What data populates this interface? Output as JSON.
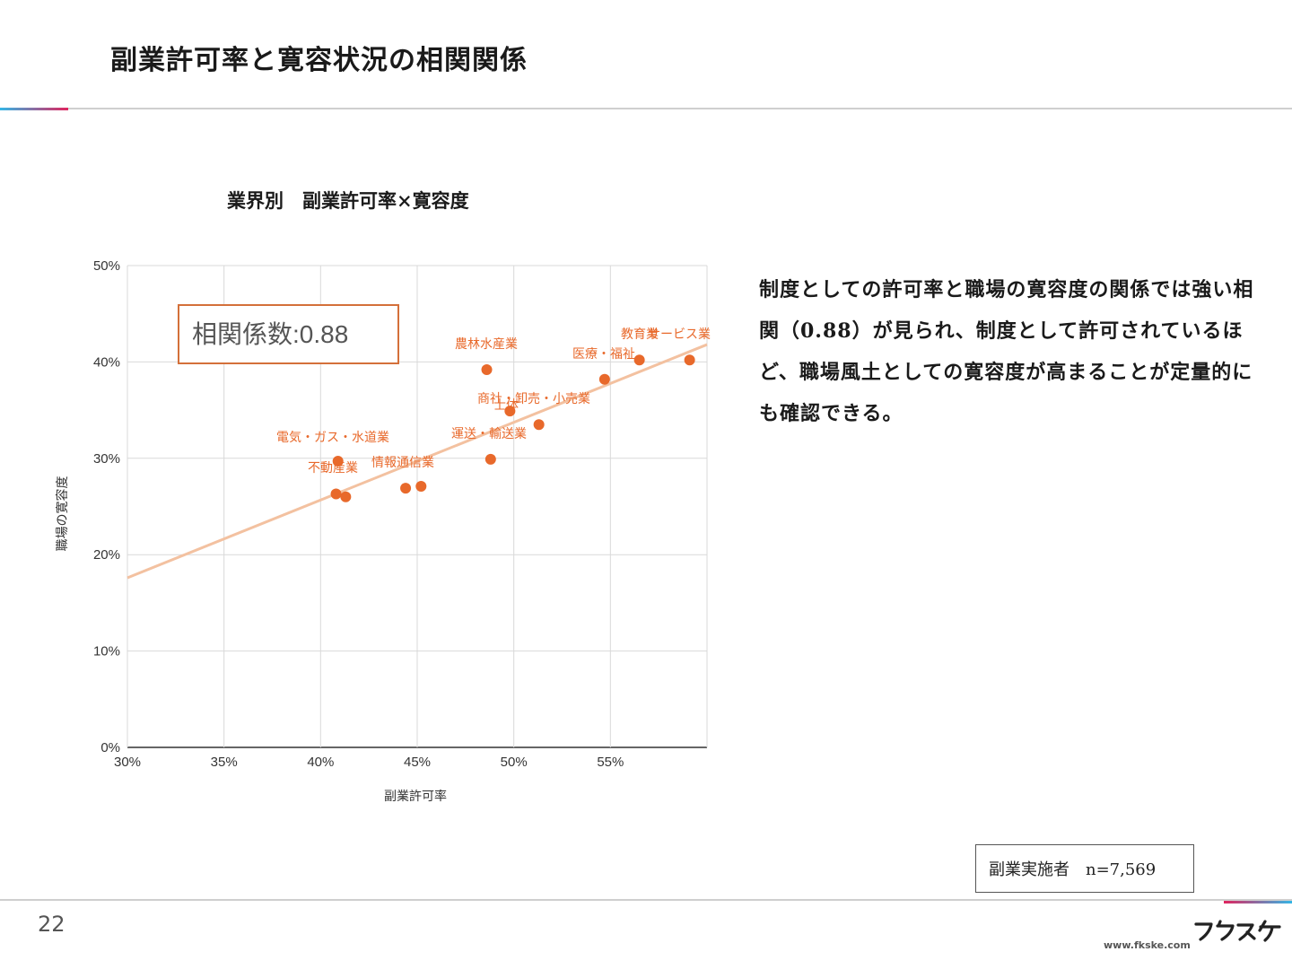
{
  "page": {
    "title": "副業許可率と寛容状況の相関関係",
    "page_number": "22",
    "site_url": "www.fkske.com",
    "logo_text": "フクスケ"
  },
  "body_text": "制度としての許可率と職場の寛容度の関係では強い相関（0.88）が見られ、制度として許可されているほど、職場風土としての寛容度が高まることが定量的にも確認できる。",
  "sample_note": "副業実施者　n=7,569",
  "colors": {
    "point": "#e8692b",
    "label": "#e8692b",
    "trendline": "#f3c1a0",
    "box_border": "#d4703a",
    "grid": "#d9d9d9"
  },
  "chart_data": {
    "type": "scatter",
    "title": "業界別　副業許可率×寛容度",
    "xlabel": "副業許可率",
    "ylabel": "職場の寛容度",
    "xlim": [
      30,
      60
    ],
    "ylim": [
      0,
      50
    ],
    "xticks": [
      "30%",
      "35%",
      "40%",
      "45%",
      "50%",
      "55%"
    ],
    "yticks": [
      "0%",
      "10%",
      "20%",
      "30%",
      "40%",
      "50%"
    ],
    "annotation": "相関係数:0.88",
    "trendline": {
      "x": [
        30,
        60
      ],
      "y": [
        17.6,
        41.8
      ]
    },
    "points": [
      {
        "label": "電気・ガス・水道業",
        "x": 40.9,
        "y": 29.7
      },
      {
        "label": "不動産業",
        "x": 40.8,
        "y": 26.3
      },
      {
        "label": "",
        "x": 41.3,
        "y": 26.0
      },
      {
        "label": "情報通信業",
        "x": 44.4,
        "y": 26.9
      },
      {
        "label": "",
        "x": 45.2,
        "y": 27.1
      },
      {
        "label": "運送・輸送業",
        "x": 48.8,
        "y": 29.9
      },
      {
        "label": "農林水産業",
        "x": 48.6,
        "y": 39.2
      },
      {
        "label": "商社・卸売・小売業",
        "x": 51.3,
        "y": 33.5
      },
      {
        "label": "医療・福祉",
        "x": 54.7,
        "y": 38.2
      },
      {
        "label": "教育業",
        "x": 56.5,
        "y": 40.2
      },
      {
        "label": "サービス業",
        "x": 59.1,
        "y": 40.2
      },
      {
        "label": "士体",
        "x": 49.8,
        "y": 34.9
      }
    ]
  }
}
